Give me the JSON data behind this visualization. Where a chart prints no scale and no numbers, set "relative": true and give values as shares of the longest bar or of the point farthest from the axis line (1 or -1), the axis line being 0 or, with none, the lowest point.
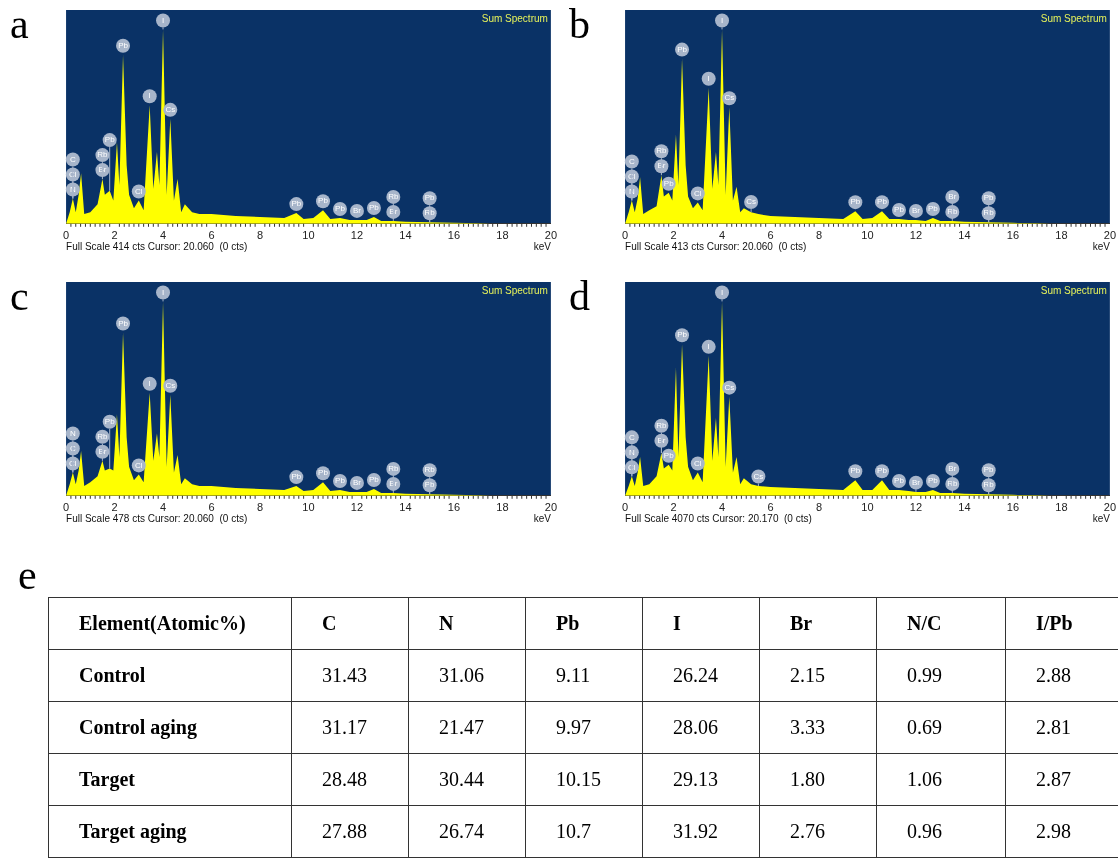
{
  "chart_data": [
    {
      "type": "area",
      "title": "a",
      "xlabel": "keV",
      "relative": true,
      "xlim": [
        0,
        20
      ],
      "xticks": [
        0,
        2,
        4,
        6,
        8,
        10,
        12,
        14,
        16,
        18,
        20
      ],
      "legend": false,
      "marker": "none",
      "x": [
        0,
        0.15,
        0.28,
        0.4,
        0.52,
        0.62,
        0.75,
        1.0,
        1.3,
        1.5,
        1.6,
        1.8,
        1.95,
        2.1,
        2.2,
        2.35,
        2.5,
        2.6,
        2.8,
        3.0,
        3.2,
        3.45,
        3.6,
        3.75,
        3.85,
        4.0,
        4.15,
        4.3,
        4.45,
        4.6,
        4.75,
        4.9,
        5.2,
        5.5,
        6.0,
        7.0,
        8.0,
        9.0,
        9.5,
        9.8,
        10.2,
        10.6,
        10.9,
        11.3,
        11.7,
        12.0,
        12.4,
        12.7,
        13.0,
        13.5,
        14.0,
        15.0,
        16.0,
        17.0,
        17.5
      ],
      "series": [
        {
          "color": "#ffff00",
          "values": [
            0,
            0.06,
            0.13,
            0.06,
            0.15,
            0.26,
            0.05,
            0.06,
            0.1,
            0.23,
            0.15,
            0.17,
            0.12,
            0.42,
            0.2,
            0.87,
            0.3,
            0.15,
            0.08,
            0.12,
            0.07,
            0.61,
            0.18,
            0.37,
            0.2,
            1.0,
            0.15,
            0.54,
            0.12,
            0.23,
            0.06,
            0.1,
            0.06,
            0.05,
            0.05,
            0.04,
            0.035,
            0.03,
            0.055,
            0.025,
            0.03,
            0.07,
            0.025,
            0.03,
            0.02,
            0.02,
            0.02,
            0.035,
            0.015,
            0.015,
            0.01,
            0.008,
            0.005,
            0.003,
            0
          ]
        }
      ],
      "annotations": [
        "Sum Spectrum",
        "Full Scale 414 cts Cursor: 20.060  (0 cts)",
        {
          "text": "I",
          "x": 4.0,
          "y": 1.0
        },
        {
          "text": "Pb",
          "x": 2.35,
          "y": 0.87
        },
        {
          "text": "I",
          "x": 3.45,
          "y": 0.61
        },
        {
          "text": "Cl",
          "x": 3.0,
          "y": 0.12
        },
        {
          "text": "Cs",
          "x": 4.3,
          "y": 0.54
        },
        {
          "text": "N",
          "x": 0.28,
          "y": 0.13
        },
        {
          "text": "Cl",
          "x": 0.28,
          "y": 0.13
        },
        {
          "text": "C",
          "x": 0.28,
          "y": 0.13
        },
        {
          "text": "Br",
          "x": 1.5,
          "y": 0.23
        },
        {
          "text": "Rb",
          "x": 1.5,
          "y": 0.23
        },
        {
          "text": "Pb",
          "x": 1.8,
          "y": 0.17
        },
        {
          "text": "Pb",
          "x": 9.5,
          "y": 0.055
        },
        {
          "text": "Pb",
          "x": 10.6,
          "y": 0.07
        },
        {
          "text": "Pb",
          "x": 11.3,
          "y": 0.03
        },
        {
          "text": "Br",
          "x": 12.0,
          "y": 0.02
        },
        {
          "text": "Pb",
          "x": 12.7,
          "y": 0.035
        },
        {
          "text": "Br",
          "x": 13.5,
          "y": 0.015
        },
        {
          "text": "Rb",
          "x": 13.5,
          "y": 0.015
        },
        {
          "text": "Rb",
          "x": 15.0,
          "y": 0.008
        },
        {
          "text": "Pb",
          "x": 15.0,
          "y": 0.008
        }
      ]
    },
    {
      "type": "area",
      "title": "b",
      "xlabel": "keV",
      "relative": true,
      "xlim": [
        0,
        20
      ],
      "xticks": [
        0,
        2,
        4,
        6,
        8,
        10,
        12,
        14,
        16,
        18,
        20
      ],
      "legend": false,
      "marker": "none",
      "x": [
        0,
        0.15,
        0.28,
        0.4,
        0.52,
        0.62,
        0.75,
        1.0,
        1.3,
        1.5,
        1.6,
        1.8,
        1.95,
        2.1,
        2.2,
        2.35,
        2.5,
        2.6,
        2.8,
        3.0,
        3.2,
        3.45,
        3.6,
        3.75,
        3.85,
        4.0,
        4.15,
        4.3,
        4.45,
        4.6,
        4.75,
        4.9,
        5.2,
        5.5,
        6.0,
        7.0,
        8.0,
        9.0,
        9.5,
        9.8,
        10.2,
        10.6,
        10.9,
        11.3,
        11.7,
        12.0,
        12.4,
        12.7,
        13.0,
        13.5,
        14.0,
        15.0,
        16.0,
        17.0,
        17.5
      ],
      "series": [
        {
          "color": "#ffff00",
          "values": [
            0,
            0.06,
            0.12,
            0.06,
            0.13,
            0.24,
            0.05,
            0.07,
            0.09,
            0.25,
            0.14,
            0.16,
            0.12,
            0.46,
            0.2,
            0.85,
            0.3,
            0.14,
            0.08,
            0.11,
            0.07,
            0.7,
            0.18,
            0.37,
            0.2,
            1.0,
            0.15,
            0.6,
            0.12,
            0.19,
            0.06,
            0.08,
            0.06,
            0.05,
            0.04,
            0.035,
            0.03,
            0.025,
            0.065,
            0.025,
            0.03,
            0.065,
            0.025,
            0.025,
            0.02,
            0.02,
            0.015,
            0.03,
            0.015,
            0.015,
            0.01,
            0.008,
            0.005,
            0.003,
            0
          ]
        }
      ],
      "annotations": [
        "Sum Spectrum",
        "Full Scale 413 cts Cursor: 20.060  (0 cts)",
        {
          "text": "I",
          "x": 4.0,
          "y": 1.0
        },
        {
          "text": "Pb",
          "x": 2.35,
          "y": 0.85
        },
        {
          "text": "I",
          "x": 3.45,
          "y": 0.7
        },
        {
          "text": "Cl",
          "x": 3.0,
          "y": 0.11
        },
        {
          "text": "Cs",
          "x": 4.3,
          "y": 0.6
        },
        {
          "text": "N",
          "x": 0.28,
          "y": 0.12
        },
        {
          "text": "Cl",
          "x": 0.28,
          "y": 0.12
        },
        {
          "text": "C",
          "x": 0.28,
          "y": 0.12
        },
        {
          "text": "Br",
          "x": 1.5,
          "y": 0.25
        },
        {
          "text": "Rb",
          "x": 1.5,
          "y": 0.25
        },
        {
          "text": "Pb",
          "x": 1.8,
          "y": 0.16
        },
        {
          "text": "Cs",
          "x": 5.2,
          "y": 0.06
        },
        {
          "text": "Pb",
          "x": 9.5,
          "y": 0.065
        },
        {
          "text": "Pb",
          "x": 10.6,
          "y": 0.065
        },
        {
          "text": "Pb",
          "x": 11.3,
          "y": 0.025
        },
        {
          "text": "Br",
          "x": 12.0,
          "y": 0.02
        },
        {
          "text": "Pb",
          "x": 12.7,
          "y": 0.03
        },
        {
          "text": "Rb",
          "x": 13.5,
          "y": 0.015
        },
        {
          "text": "Br",
          "x": 13.5,
          "y": 0.015
        },
        {
          "text": "Rb",
          "x": 15.0,
          "y": 0.008
        },
        {
          "text": "Pb",
          "x": 15.0,
          "y": 0.008
        }
      ]
    },
    {
      "type": "area",
      "title": "c",
      "xlabel": "keV",
      "relative": true,
      "xlim": [
        0,
        20
      ],
      "xticks": [
        0,
        2,
        4,
        6,
        8,
        10,
        12,
        14,
        16,
        18,
        20
      ],
      "legend": false,
      "marker": "none",
      "x": [
        0,
        0.15,
        0.28,
        0.4,
        0.52,
        0.62,
        0.75,
        1.0,
        1.3,
        1.5,
        1.6,
        1.8,
        1.95,
        2.1,
        2.2,
        2.35,
        2.5,
        2.6,
        2.8,
        3.0,
        3.2,
        3.45,
        3.6,
        3.75,
        3.85,
        4.0,
        4.15,
        4.3,
        4.45,
        4.6,
        4.75,
        4.9,
        5.2,
        5.5,
        6.0,
        7.0,
        8.0,
        9.0,
        9.5,
        9.8,
        10.2,
        10.6,
        10.9,
        11.3,
        11.7,
        12.0,
        12.4,
        12.7,
        13.0,
        13.5,
        14.0,
        15.0,
        16.0,
        17.0,
        17.5
      ],
      "series": [
        {
          "color": "#ffff00",
          "values": [
            0,
            0.06,
            0.12,
            0.06,
            0.13,
            0.23,
            0.05,
            0.07,
            0.1,
            0.18,
            0.13,
            0.14,
            0.13,
            0.42,
            0.2,
            0.84,
            0.3,
            0.15,
            0.08,
            0.11,
            0.07,
            0.53,
            0.18,
            0.32,
            0.2,
            1.0,
            0.15,
            0.52,
            0.12,
            0.21,
            0.06,
            0.09,
            0.06,
            0.05,
            0.05,
            0.04,
            0.035,
            0.03,
            0.05,
            0.025,
            0.03,
            0.07,
            0.025,
            0.03,
            0.02,
            0.02,
            0.02,
            0.035,
            0.015,
            0.015,
            0.01,
            0.008,
            0.005,
            0.003,
            0
          ]
        }
      ],
      "annotations": [
        "Sum Spectrum",
        "Full Scale 478 cts Cursor: 20.060  (0 cts)",
        {
          "text": "I",
          "x": 4.0,
          "y": 1.0
        },
        {
          "text": "Pb",
          "x": 2.35,
          "y": 0.84
        },
        {
          "text": "Cl",
          "x": 3.0,
          "y": 0.11
        },
        {
          "text": "I",
          "x": 3.45,
          "y": 0.53
        },
        {
          "text": "Cs",
          "x": 4.3,
          "y": 0.52
        },
        {
          "text": "Cl",
          "x": 0.28,
          "y": 0.12
        },
        {
          "text": "C",
          "x": 0.28,
          "y": 0.12
        },
        {
          "text": "N",
          "x": 0.28,
          "y": 0.12
        },
        {
          "text": "Br",
          "x": 1.5,
          "y": 0.18
        },
        {
          "text": "Rb",
          "x": 1.5,
          "y": 0.18
        },
        {
          "text": "Pb",
          "x": 1.8,
          "y": 0.14
        },
        {
          "text": "Pb",
          "x": 9.5,
          "y": 0.05
        },
        {
          "text": "Pb",
          "x": 10.6,
          "y": 0.07
        },
        {
          "text": "Pb",
          "x": 11.3,
          "y": 0.03
        },
        {
          "text": "Br",
          "x": 12.0,
          "y": 0.02
        },
        {
          "text": "Pb",
          "x": 12.7,
          "y": 0.035
        },
        {
          "text": "Br",
          "x": 13.5,
          "y": 0.015
        },
        {
          "text": "Rb",
          "x": 13.5,
          "y": 0.015
        },
        {
          "text": "Pb",
          "x": 15.0,
          "y": 0.008
        },
        {
          "text": "Rb",
          "x": 15.0,
          "y": 0.008
        }
      ]
    },
    {
      "type": "area",
      "title": "d",
      "xlabel": "keV",
      "relative": true,
      "xlim": [
        0,
        20
      ],
      "xticks": [
        0,
        2,
        4,
        6,
        8,
        10,
        12,
        14,
        16,
        18,
        20
      ],
      "legend": false,
      "marker": "none",
      "x": [
        0,
        0.15,
        0.28,
        0.4,
        0.52,
        0.62,
        0.75,
        1.0,
        1.3,
        1.5,
        1.6,
        1.8,
        1.95,
        2.1,
        2.2,
        2.35,
        2.5,
        2.6,
        2.8,
        3.0,
        3.2,
        3.45,
        3.6,
        3.75,
        3.85,
        4.0,
        4.15,
        4.3,
        4.45,
        4.6,
        4.75,
        4.9,
        5.2,
        5.5,
        6.0,
        7.0,
        8.0,
        9.0,
        9.5,
        9.8,
        10.2,
        10.6,
        10.9,
        11.3,
        11.7,
        12.0,
        12.4,
        12.7,
        13.0,
        13.5,
        14.0,
        15.0,
        16.0,
        17.0,
        17.5
      ],
      "series": [
        {
          "color": "#ffff00",
          "values": [
            0,
            0.05,
            0.1,
            0.05,
            0.12,
            0.2,
            0.05,
            0.06,
            0.1,
            0.22,
            0.14,
            0.16,
            0.13,
            0.66,
            0.2,
            0.78,
            0.3,
            0.15,
            0.08,
            0.12,
            0.07,
            0.72,
            0.18,
            0.4,
            0.2,
            1.0,
            0.15,
            0.51,
            0.12,
            0.2,
            0.06,
            0.09,
            0.06,
            0.05,
            0.045,
            0.04,
            0.035,
            0.03,
            0.08,
            0.03,
            0.03,
            0.08,
            0.03,
            0.03,
            0.025,
            0.02,
            0.02,
            0.03,
            0.015,
            0.015,
            0.01,
            0.008,
            0.005,
            0.003,
            0
          ]
        }
      ],
      "annotations": [
        "Sum Spectrum",
        "Full Scale 4070 cts Cursor: 20.170  (0 cts)",
        {
          "text": "I",
          "x": 4.0,
          "y": 1.0
        },
        {
          "text": "Pb",
          "x": 2.35,
          "y": 0.78
        },
        {
          "text": "I",
          "x": 3.45,
          "y": 0.72
        },
        {
          "text": "Cs",
          "x": 4.3,
          "y": 0.51
        },
        {
          "text": "Pb",
          "x": 1.8,
          "y": 0.16
        },
        {
          "text": "Cl",
          "x": 3.0,
          "y": 0.12
        },
        {
          "text": "Br",
          "x": 1.5,
          "y": 0.22
        },
        {
          "text": "Rb",
          "x": 1.5,
          "y": 0.22
        },
        {
          "text": "Cl",
          "x": 0.28,
          "y": 0.1
        },
        {
          "text": "N",
          "x": 0.28,
          "y": 0.1
        },
        {
          "text": "C",
          "x": 0.28,
          "y": 0.1
        },
        {
          "text": "Cs",
          "x": 5.5,
          "y": 0.05
        },
        {
          "text": "Pb",
          "x": 9.5,
          "y": 0.08
        },
        {
          "text": "Pb",
          "x": 10.6,
          "y": 0.08
        },
        {
          "text": "Pb",
          "x": 11.3,
          "y": 0.03
        },
        {
          "text": "Br",
          "x": 12.0,
          "y": 0.02
        },
        {
          "text": "Pb",
          "x": 12.7,
          "y": 0.03
        },
        {
          "text": "Rb",
          "x": 13.5,
          "y": 0.015
        },
        {
          "text": "Br",
          "x": 13.5,
          "y": 0.015
        },
        {
          "text": "Rb",
          "x": 15.0,
          "y": 0.008
        },
        {
          "text": "Pb",
          "x": 15.0,
          "y": 0.008
        }
      ]
    },
    {
      "type": "other",
      "title": "e",
      "ylabel": "Element(Atomic%)",
      "categories": [
        "C",
        "N",
        "Pb",
        "I",
        "Br",
        "N/C",
        "I/Pb"
      ],
      "y_categories": [
        "Control",
        "Control aging",
        "Target",
        "Target aging"
      ],
      "cell_labels": [
        [
          "31.43",
          "31.06",
          "9.11",
          "26.24",
          "2.15",
          "0.99",
          "2.88"
        ],
        [
          "31.17",
          "21.47",
          "9.97",
          "28.06",
          "3.33",
          "0.69",
          "2.81"
        ],
        [
          "28.48",
          "30.44",
          "10.15",
          "29.13",
          "1.80",
          "1.06",
          "2.87"
        ],
        [
          "27.88",
          "26.74",
          "10.7",
          "31.92",
          "2.76",
          "0.96",
          "2.98"
        ]
      ]
    }
  ]
}
